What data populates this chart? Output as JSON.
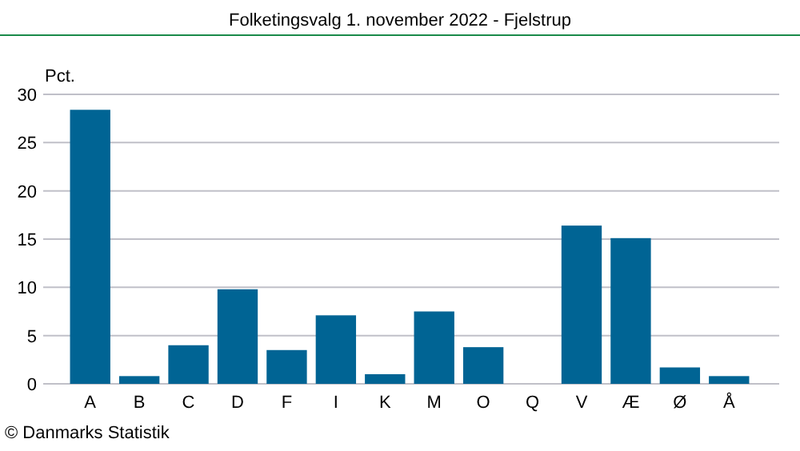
{
  "chart_data": {
    "type": "bar",
    "title": "Folketingsvalg 1. november 2022 - Fjelstrup",
    "ylabel": "Pct.",
    "categories": [
      "A",
      "B",
      "C",
      "D",
      "F",
      "I",
      "K",
      "M",
      "O",
      "Q",
      "V",
      "Æ",
      "Ø",
      "Å"
    ],
    "values": [
      28.4,
      0.8,
      4.0,
      9.8,
      3.5,
      7.1,
      1.0,
      7.5,
      3.8,
      0,
      16.4,
      15.1,
      1.7,
      0.8
    ],
    "color": "#006494",
    "ylim": [
      0,
      30
    ],
    "yticks": [
      0,
      5,
      10,
      15,
      20,
      25,
      30
    ],
    "grid": "y",
    "annotations": [
      "© Danmarks Statistik"
    ]
  }
}
